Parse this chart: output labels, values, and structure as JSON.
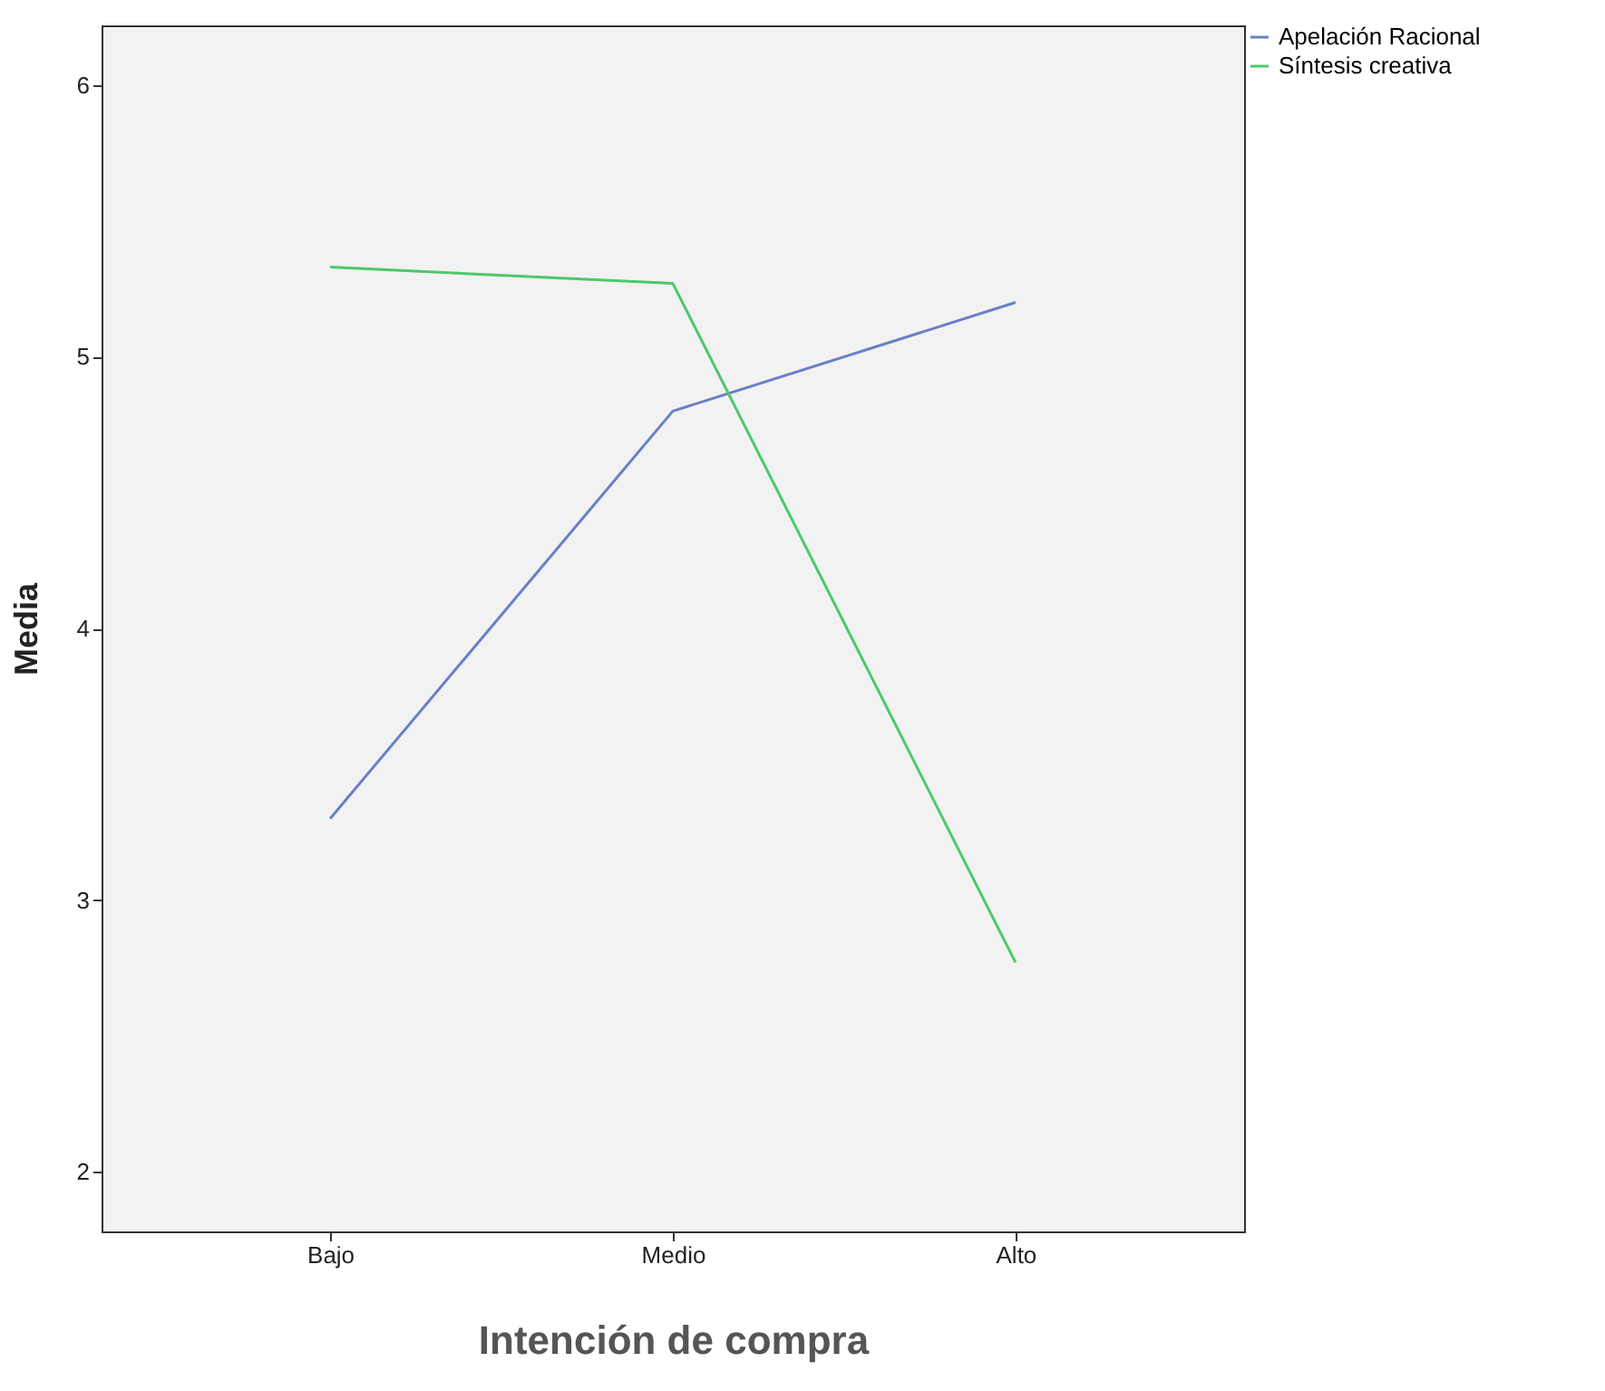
{
  "chart_data": {
    "type": "line",
    "xlabel": "Intención de compra",
    "ylabel": "Media",
    "categories": [
      "Bajo",
      "Medio",
      "Alto"
    ],
    "series": [
      {
        "name": "Apelación Racional",
        "color": "#6a7fc6",
        "values": [
          3.3,
          4.8,
          5.2
        ]
      },
      {
        "name": "Síntesis creativa",
        "color": "#4cc96a",
        "values": [
          5.33,
          5.27,
          2.77
        ]
      }
    ],
    "ylim": [
      1.78,
      6.22
    ],
    "yticks": [
      2,
      3,
      4,
      5,
      6
    ],
    "grid": false,
    "legend": "top right",
    "marker": "none",
    "line_style": "solid"
  }
}
